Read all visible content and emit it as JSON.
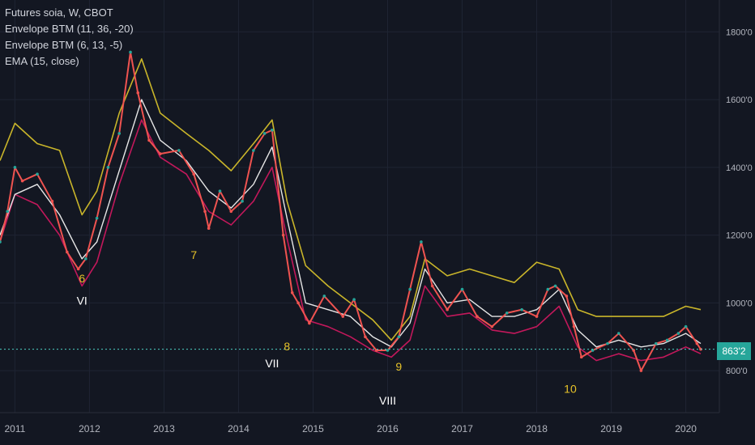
{
  "legend": {
    "title": "Futures soia, W, CBOT",
    "line1": "Envelope BTM (11, 36, -20)",
    "line2": "Envelope BTM (6, 13, -5)",
    "line3": "EMA (15, close)"
  },
  "colors": {
    "background": "#131722",
    "grid": "#1f2433",
    "up_candle": "#26a69a",
    "down_candle": "#ef5350",
    "outer_envelope": "#c9b52a",
    "inner_envelope": "#c2185b",
    "ema": "#e6e6e6",
    "current_price_line": "#4dd0c5",
    "wave_labels_major": "#e6c229",
    "wave_labels_minor": "#ffffff"
  },
  "last_price": "863'2",
  "chart_data": {
    "type": "line",
    "title": "Futures soia, W, CBOT",
    "xlabel": "",
    "ylabel": "",
    "x_ticks": [
      "2011",
      "2012",
      "2013",
      "2014",
      "2015",
      "2016",
      "2017",
      "2018",
      "2019",
      "2020"
    ],
    "y_ticks": [
      "800'0",
      "1000'0",
      "1200'0",
      "1400'0",
      "1600'0",
      "1800'0"
    ],
    "ylim": [
      700,
      1870
    ],
    "xlim": [
      2010.8,
      2020.45
    ],
    "series": [
      {
        "name": "Futures soia",
        "x": [
          2010.8,
          2010.9,
          2011.0,
          2011.1,
          2011.3,
          2011.5,
          2011.7,
          2011.85,
          2011.95,
          2012.1,
          2012.25,
          2012.4,
          2012.55,
          2012.65,
          2012.8,
          2012.95,
          2013.2,
          2013.4,
          2013.55,
          2013.6,
          2013.75,
          2013.9,
          2014.05,
          2014.2,
          2014.35,
          2014.45,
          2014.6,
          2014.72,
          2014.8,
          2014.95,
          2015.15,
          2015.4,
          2015.55,
          2015.7,
          2015.85,
          2016.0,
          2016.15,
          2016.3,
          2016.45,
          2016.6,
          2016.8,
          2017.0,
          2017.2,
          2017.4,
          2017.6,
          2017.8,
          2018.0,
          2018.15,
          2018.25,
          2018.4,
          2018.5,
          2018.6,
          2018.75,
          2018.95,
          2019.1,
          2019.3,
          2019.4,
          2019.6,
          2019.75,
          2019.9,
          2020.0,
          2020.15,
          2020.2
        ],
        "values": [
          1180,
          1270,
          1400,
          1360,
          1380,
          1300,
          1150,
          1100,
          1130,
          1250,
          1400,
          1500,
          1740,
          1620,
          1480,
          1440,
          1450,
          1380,
          1270,
          1220,
          1330,
          1270,
          1300,
          1450,
          1500,
          1510,
          1200,
          1030,
          1000,
          940,
          1020,
          960,
          1010,
          900,
          860,
          860,
          900,
          1040,
          1180,
          1050,
          980,
          1040,
          960,
          930,
          970,
          980,
          960,
          1040,
          1050,
          1020,
          930,
          840,
          860,
          880,
          910,
          860,
          800,
          880,
          890,
          910,
          930,
          880,
          863
        ]
      },
      {
        "name": "EMA (15, close)",
        "x": [
          2010.8,
          2011.0,
          2011.3,
          2011.6,
          2011.9,
          2012.1,
          2012.4,
          2012.7,
          2012.95,
          2013.3,
          2013.6,
          2013.9,
          2014.2,
          2014.45,
          2014.65,
          2014.9,
          2015.2,
          2015.5,
          2015.8,
          2016.05,
          2016.3,
          2016.5,
          2016.8,
          2017.1,
          2017.4,
          2017.7,
          2018.0,
          2018.3,
          2018.55,
          2018.8,
          2019.1,
          2019.4,
          2019.7,
          2020.0,
          2020.2
        ],
        "values": [
          1200,
          1320,
          1350,
          1260,
          1130,
          1180,
          1390,
          1600,
          1480,
          1420,
          1330,
          1280,
          1350,
          1460,
          1250,
          1000,
          980,
          960,
          900,
          870,
          940,
          1100,
          1000,
          1010,
          960,
          960,
          980,
          1040,
          920,
          870,
          890,
          870,
          880,
          910,
          880
        ]
      },
      {
        "name": "Envelope BTM (11, 36, -20)",
        "x": [
          2010.8,
          2011.0,
          2011.3,
          2011.6,
          2011.9,
          2012.1,
          2012.4,
          2012.7,
          2012.95,
          2013.3,
          2013.6,
          2013.9,
          2014.2,
          2014.45,
          2014.65,
          2014.9,
          2015.2,
          2015.5,
          2015.8,
          2016.05,
          2016.3,
          2016.5,
          2016.8,
          2017.1,
          2017.4,
          2017.7,
          2018.0,
          2018.3,
          2018.55,
          2018.8,
          2019.1,
          2019.4,
          2019.7,
          2020.0,
          2020.2
        ],
        "values": [
          1420,
          1530,
          1470,
          1450,
          1260,
          1330,
          1560,
          1720,
          1560,
          1500,
          1450,
          1390,
          1470,
          1540,
          1300,
          1110,
          1050,
          1000,
          950,
          890,
          960,
          1130,
          1080,
          1100,
          1080,
          1060,
          1120,
          1100,
          980,
          960,
          960,
          960,
          960,
          990,
          980
        ]
      },
      {
        "name": "Envelope BTM (6, 13, -5)",
        "x": [
          2010.8,
          2011.0,
          2011.3,
          2011.6,
          2011.9,
          2012.1,
          2012.4,
          2012.7,
          2012.95,
          2013.3,
          2013.6,
          2013.9,
          2014.2,
          2014.45,
          2014.65,
          2014.9,
          2015.2,
          2015.5,
          2015.8,
          2016.05,
          2016.3,
          2016.5,
          2016.8,
          2017.1,
          2017.4,
          2017.7,
          2018.0,
          2018.3,
          2018.55,
          2018.8,
          2019.1,
          2019.4,
          2019.7,
          2020.0,
          2020.2
        ],
        "values": [
          1180,
          1320,
          1290,
          1200,
          1050,
          1120,
          1350,
          1540,
          1430,
          1380,
          1270,
          1230,
          1300,
          1400,
          1190,
          950,
          930,
          900,
          860,
          840,
          890,
          1050,
          960,
          970,
          920,
          910,
          930,
          990,
          870,
          830,
          850,
          830,
          840,
          870,
          850
        ]
      }
    ],
    "annotations": [
      {
        "text": "6",
        "x": 2011.9,
        "y": 1060
      },
      {
        "text": "VI",
        "x": 2011.9,
        "y": 995
      },
      {
        "text": "7",
        "x": 2013.4,
        "y": 1130
      },
      {
        "text": "8",
        "x": 2014.65,
        "y": 860
      },
      {
        "text": "VII",
        "x": 2014.45,
        "y": 810
      },
      {
        "text": "9",
        "x": 2016.15,
        "y": 800
      },
      {
        "text": "10",
        "x": 2018.45,
        "y": 735
      },
      {
        "text": "VIII",
        "x": 2016.0,
        "y": 700
      }
    ],
    "current_price": 863.25,
    "grid": true,
    "legend": "top-left"
  }
}
